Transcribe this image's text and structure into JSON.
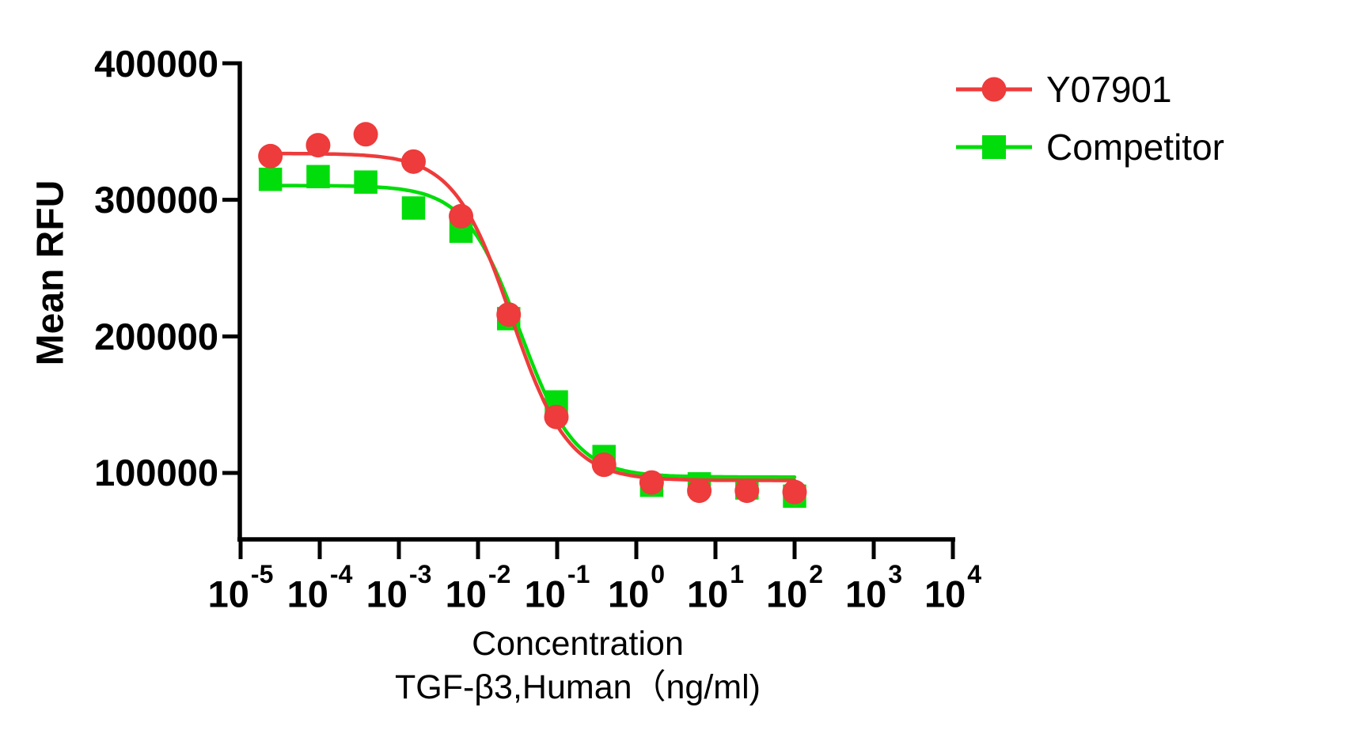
{
  "chart_data": {
    "type": "scatter",
    "title": "",
    "ylabel": "Mean RFU",
    "xlabel_line1": "Concentration",
    "xlabel_line2": "TGF-β3,Human（ng/ml)",
    "x_scale": "log10",
    "xlim_log": [
      -5,
      4
    ],
    "ylim": [
      50000,
      400000
    ],
    "grid": false,
    "legend_position": "top-right",
    "y_ticks": [
      400000,
      300000,
      200000,
      100000
    ],
    "y_tick_labels": [
      "400000",
      "300000",
      "200000",
      "100000"
    ],
    "x_ticks": [
      {
        "base": "10",
        "exp": "-5"
      },
      {
        "base": "10",
        "exp": "-4"
      },
      {
        "base": "10",
        "exp": "-3"
      },
      {
        "base": "10",
        "exp": "-2"
      },
      {
        "base": "10",
        "exp": "-1"
      },
      {
        "base": "10",
        "exp": "0"
      },
      {
        "base": "10",
        "exp": "1"
      },
      {
        "base": "10",
        "exp": "2"
      },
      {
        "base": "10",
        "exp": "3"
      },
      {
        "base": "10",
        "exp": "4"
      }
    ],
    "x_ng_ml": [
      2.38e-05,
      9.54e-05,
      0.000381,
      0.00153,
      0.0061,
      0.0244,
      0.0977,
      0.391,
      1.5625,
      6.25,
      25,
      100
    ],
    "series": [
      {
        "name": "Y07901",
        "color": "#ee3b3b",
        "marker": "circle",
        "values_rfu": [
          332000,
          340000,
          348000,
          328000,
          288000,
          216000,
          141000,
          106000,
          93000,
          87000,
          87000,
          86000
        ],
        "fit": {
          "top": 334000,
          "bottom": 94500,
          "log_ec50": -1.58,
          "hill_slope": -1.2
        }
      },
      {
        "name": "Competitor",
        "color": "#00dd0a",
        "marker": "square",
        "values_rfu": [
          315000,
          317000,
          313000,
          294000,
          277000,
          213000,
          152000,
          112000,
          91000,
          92000,
          89000,
          83000
        ],
        "fit": {
          "top": 310500,
          "bottom": 97000,
          "log_ec50": -1.47,
          "hill_slope": -1.25
        }
      }
    ]
  }
}
